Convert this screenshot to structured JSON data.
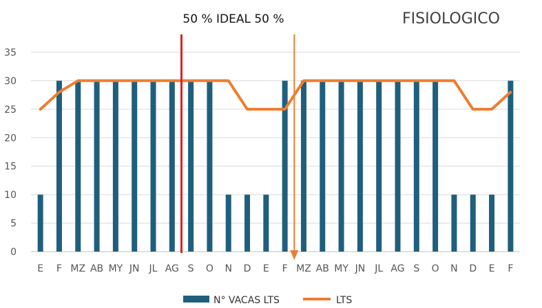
{
  "chart_data": {
    "type": "bar",
    "title": "FISIOLOGICO",
    "annotation": "50 % IDEAL 50 %",
    "categories": [
      "E",
      "F",
      "MZ",
      "AB",
      "MY",
      "JN",
      "JL",
      "AG",
      "S",
      "O",
      "N",
      "D",
      "E",
      "F",
      "MZ",
      "AB",
      "MY",
      "JN",
      "JL",
      "AG",
      "S",
      "O",
      "N",
      "D",
      "E",
      "F"
    ],
    "series": [
      {
        "name": "N° VACAS LTS",
        "type": "bar",
        "color": "#1f5f7e",
        "values": [
          10,
          30,
          30,
          30,
          30,
          30,
          30,
          30,
          30,
          30,
          10,
          10,
          10,
          30,
          30,
          30,
          30,
          30,
          30,
          30,
          30,
          30,
          10,
          10,
          10,
          30
        ]
      },
      {
        "name": "LTS",
        "type": "line",
        "color": "#ed7d31",
        "values": [
          25,
          28,
          30,
          30,
          30,
          30,
          30,
          30,
          30,
          30,
          30,
          25,
          25,
          25,
          30,
          30,
          30,
          30,
          30,
          30,
          30,
          30,
          30,
          25,
          25,
          28
        ]
      }
    ],
    "ylim": [
      0,
      35
    ],
    "yticks": [
      0,
      5,
      10,
      15,
      20,
      25,
      30,
      35
    ],
    "grid": true,
    "legend": "bottom",
    "markers": [
      {
        "type": "vertical-line",
        "color": "#e02020",
        "after_category_index": 7
      },
      {
        "type": "vertical-arrow",
        "color": "#ed7d31",
        "after_category_index": 13
      }
    ]
  }
}
